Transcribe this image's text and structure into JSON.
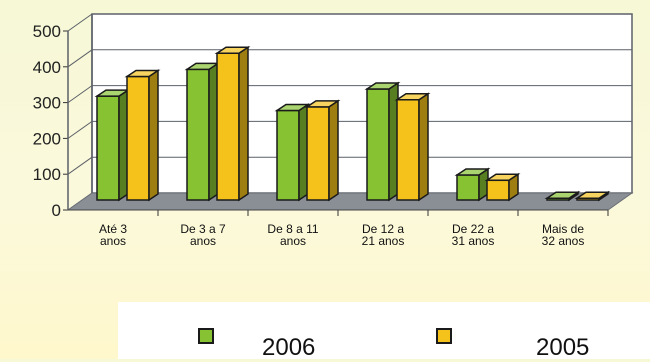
{
  "chart_data": {
    "type": "bar",
    "categories": [
      [
        "Até 3",
        "anos"
      ],
      [
        "De 3 a 7",
        "anos"
      ],
      [
        "De 8 a 11",
        "anos"
      ],
      [
        "De 12 a",
        "21 anos"
      ],
      [
        "De 22 a",
        "31 anos"
      ],
      [
        "Mais de",
        "32 anos"
      ]
    ],
    "series": [
      {
        "name": "2006",
        "color": "#86c232",
        "values": [
          290,
          365,
          250,
          310,
          70,
          5
        ]
      },
      {
        "name": "2005",
        "color": "#f4c21a",
        "values": [
          345,
          410,
          260,
          280,
          55,
          5
        ]
      }
    ],
    "yticks": [
      "0",
      "100",
      "200",
      "300",
      "400",
      "500"
    ],
    "ylim": [
      0,
      500
    ],
    "grid": true,
    "legend_position": "bottom",
    "title": "",
    "xlabel": "",
    "ylabel": ""
  }
}
